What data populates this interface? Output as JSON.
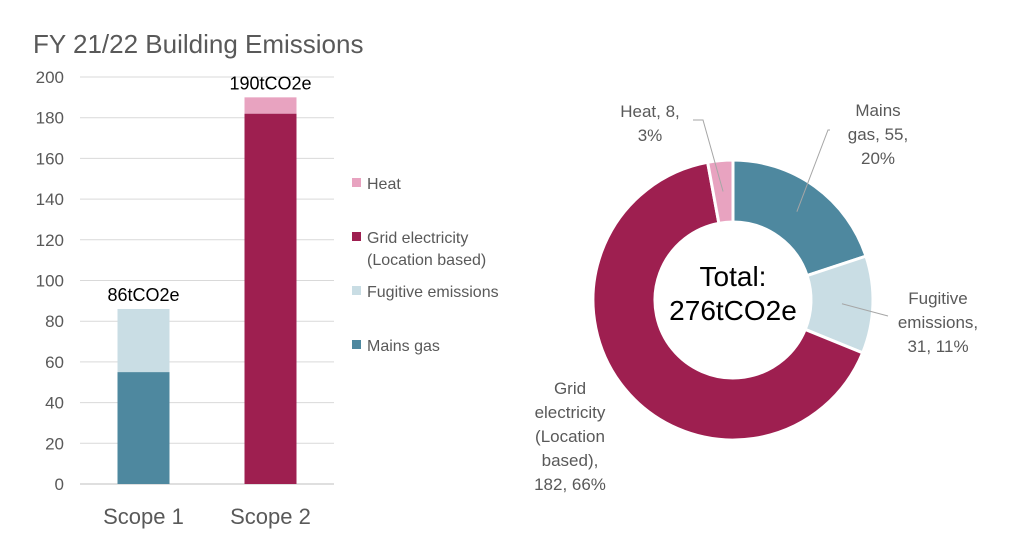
{
  "title": "FY 21/22 Building Emissions",
  "colors": {
    "heat": "#e8a3c0",
    "grid_electricity": "#9e1f50",
    "fugitive": "#c9dde4",
    "mains_gas": "#4e889f",
    "axis_text": "#595959",
    "gridline": "#d9d9d9"
  },
  "chart_data": [
    {
      "type": "bar",
      "stacked": true,
      "categories": [
        "Scope 1",
        "Scope 2"
      ],
      "series": [
        {
          "name": "Mains gas",
          "values": [
            55,
            0
          ]
        },
        {
          "name": "Fugitive emissions",
          "values": [
            31,
            0
          ]
        },
        {
          "name": "Grid electricity (Location based)",
          "values": [
            0,
            182
          ]
        },
        {
          "name": "Heat",
          "values": [
            0,
            8
          ]
        }
      ],
      "totals_labels": [
        "86tCO2e",
        "190tCO2e"
      ],
      "ylim": [
        0,
        200
      ],
      "yticks": [
        0,
        20,
        40,
        60,
        80,
        100,
        120,
        140,
        160,
        180,
        200
      ],
      "grid": true,
      "legend": {
        "placement": "right",
        "entries": [
          {
            "lines": [
              "Heat"
            ],
            "color_key": "heat"
          },
          {
            "lines": [
              "Grid electricity",
              "(Location based)"
            ],
            "color_key": "grid_electricity"
          },
          {
            "lines": [
              "Fugitive emissions"
            ],
            "color_key": "fugitive"
          },
          {
            "lines": [
              "Mains gas"
            ],
            "color_key": "mains_gas"
          }
        ]
      }
    },
    {
      "type": "pie",
      "donut": true,
      "center_label": [
        "Total:",
        "276tCO2e"
      ],
      "slices": [
        {
          "name": "Mains gas",
          "value": 55,
          "percent": "20%",
          "color_key": "mains_gas",
          "label_lines": [
            "Mains",
            "gas, 55,",
            "20%"
          ]
        },
        {
          "name": "Fugitive emissions",
          "value": 31,
          "percent": "11%",
          "color_key": "fugitive",
          "label_lines": [
            "Fugitive",
            "emissions,",
            "31, 11%"
          ]
        },
        {
          "name": "Grid electricity (Location based)",
          "value": 182,
          "percent": "66%",
          "color_key": "grid_electricity",
          "label_lines": [
            "Grid",
            "electricity",
            "(Location",
            "based),",
            "182, 66%"
          ]
        },
        {
          "name": "Heat",
          "value": 8,
          "percent": "3%",
          "color_key": "heat",
          "label_lines": [
            "Heat, 8,",
            "3%"
          ]
        }
      ]
    }
  ]
}
